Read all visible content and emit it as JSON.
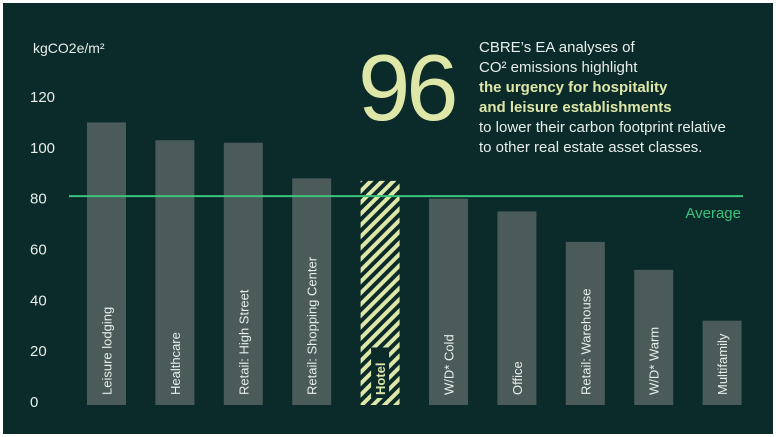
{
  "chart_data": {
    "type": "bar",
    "ylabel": "kgCO2e/m²",
    "ylim": [
      0,
      120
    ],
    "yticks": [
      0,
      20,
      40,
      60,
      80,
      100,
      120
    ],
    "categories": [
      "Leisure lodging",
      "Healthcare",
      "Retail: High Street",
      "Retail: Shopping Center",
      "Hotel",
      "W/D* Cold",
      "Office",
      "Retail: Warehouse",
      "W/D* Warm",
      "Multifamily"
    ],
    "values": [
      110,
      103,
      102,
      88,
      87,
      80,
      75,
      63,
      52,
      32
    ],
    "highlight": "Hotel",
    "average": {
      "label": "Average",
      "value": 81
    }
  },
  "callout": {
    "number": "96",
    "line1": "CBRE’s EA analyses of",
    "line2": "CO² emissions highlight",
    "line3": "the urgency for hospitality",
    "line4": "and leisure establishments",
    "line5": "to lower their carbon footprint relative",
    "line6": "to other real estate asset classes."
  },
  "colors": {
    "background": "#0b2a2a",
    "bar": "#4a5b59",
    "highlight": "#dfe7a8",
    "average_line": "#3cc37d",
    "text": "#e8eeea"
  }
}
